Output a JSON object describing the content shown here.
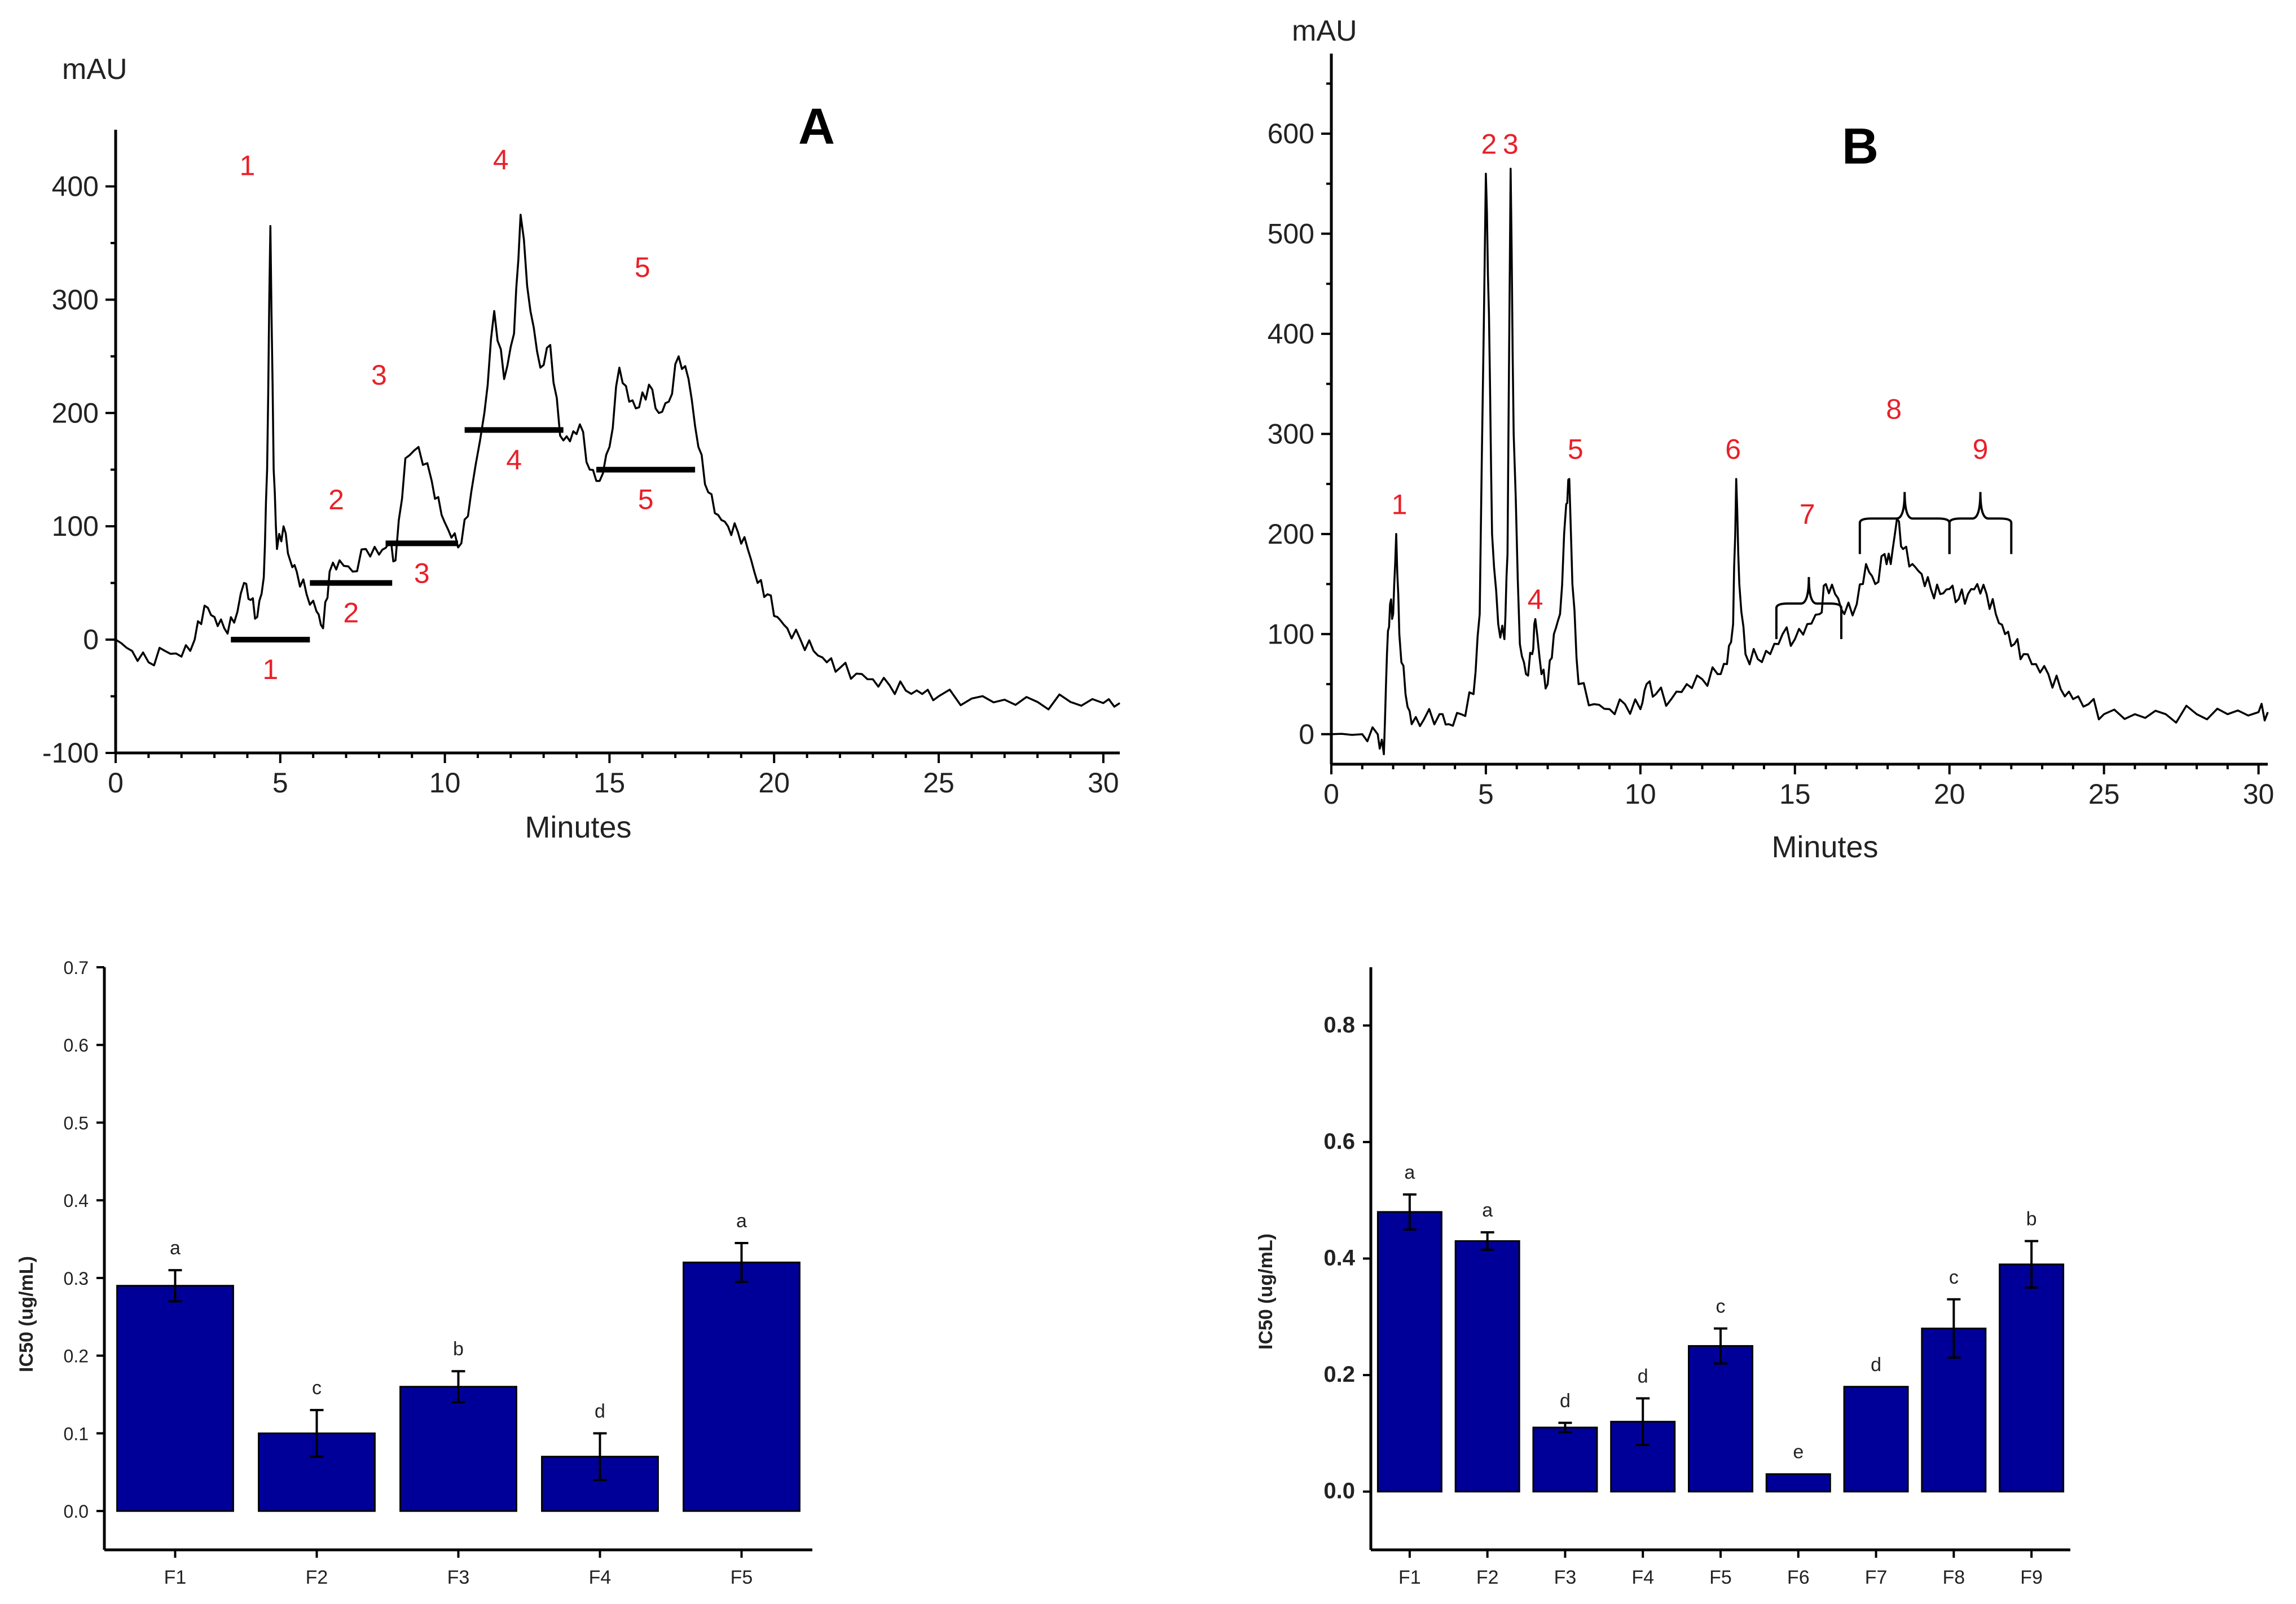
{
  "chart_data": [
    {
      "type": "line",
      "panel_label": "A",
      "title": "",
      "xlabel": "Minutes",
      "ylabel": "mAU",
      "xlim": [
        0,
        30.5
      ],
      "ylim": [
        -100,
        450
      ],
      "xticks": [
        0,
        5,
        10,
        15,
        20,
        25,
        30
      ],
      "yticks": [
        -100,
        0,
        100,
        200,
        300,
        400
      ],
      "trace": [
        [
          0,
          0
        ],
        [
          0.5,
          -10
        ],
        [
          1,
          -20
        ],
        [
          1.5,
          -10
        ],
        [
          2,
          -15
        ],
        [
          2.4,
          0
        ],
        [
          2.7,
          30
        ],
        [
          3,
          20
        ],
        [
          3.3,
          10
        ],
        [
          3.6,
          15
        ],
        [
          3.9,
          50
        ],
        [
          4.1,
          35
        ],
        [
          4.3,
          20
        ],
        [
          4.5,
          55
        ],
        [
          4.6,
          150
        ],
        [
          4.7,
          365
        ],
        [
          4.8,
          150
        ],
        [
          4.9,
          80
        ],
        [
          5.1,
          100
        ],
        [
          5.3,
          70
        ],
        [
          5.5,
          60
        ],
        [
          5.8,
          40
        ],
        [
          6.1,
          25
        ],
        [
          6.3,
          10
        ],
        [
          6.5,
          60
        ],
        [
          6.8,
          70
        ],
        [
          7.2,
          60
        ],
        [
          7.6,
          80
        ],
        [
          8,
          75
        ],
        [
          8.3,
          85
        ],
        [
          8.5,
          70
        ],
        [
          8.8,
          160
        ],
        [
          9.2,
          170
        ],
        [
          9.6,
          140
        ],
        [
          9.9,
          110
        ],
        [
          10.2,
          90
        ],
        [
          10.5,
          85
        ],
        [
          10.8,
          130
        ],
        [
          11.2,
          200
        ],
        [
          11.5,
          290
        ],
        [
          11.8,
          230
        ],
        [
          12.1,
          270
        ],
        [
          12.3,
          375
        ],
        [
          12.6,
          290
        ],
        [
          12.9,
          240
        ],
        [
          13.2,
          260
        ],
        [
          13.5,
          180
        ],
        [
          13.8,
          175
        ],
        [
          14.1,
          190
        ],
        [
          14.4,
          150
        ],
        [
          14.7,
          140
        ],
        [
          15,
          170
        ],
        [
          15.3,
          240
        ],
        [
          15.6,
          210
        ],
        [
          15.9,
          205
        ],
        [
          16.2,
          225
        ],
        [
          16.5,
          200
        ],
        [
          16.8,
          210
        ],
        [
          17.1,
          250
        ],
        [
          17.4,
          230
        ],
        [
          17.7,
          170
        ],
        [
          18,
          130
        ],
        [
          18.3,
          110
        ],
        [
          18.6,
          100
        ],
        [
          18.9,
          95
        ],
        [
          19.2,
          80
        ],
        [
          19.5,
          50
        ],
        [
          19.8,
          40
        ],
        [
          20.1,
          20
        ],
        [
          20.4,
          10
        ],
        [
          20.8,
          0
        ],
        [
          21.2,
          -10
        ],
        [
          21.6,
          -20
        ],
        [
          22,
          -25
        ],
        [
          22.5,
          -30
        ],
        [
          23,
          -35
        ],
        [
          23.5,
          -40
        ],
        [
          24,
          -45
        ],
        [
          24.5,
          -48
        ],
        [
          25,
          -50
        ],
        [
          26,
          -52
        ],
        [
          27,
          -53
        ],
        [
          28,
          -55
        ],
        [
          29,
          -55
        ],
        [
          30,
          -56
        ],
        [
          30.5,
          -56
        ]
      ],
      "fractions": [
        {
          "label": "1",
          "range": [
            3.5,
            5.9
          ],
          "level": 0
        },
        {
          "label": "2",
          "range": [
            5.9,
            8.4
          ],
          "level": 50
        },
        {
          "label": "3",
          "range": [
            8.2,
            10.4
          ],
          "level": 85
        },
        {
          "label": "4",
          "range": [
            10.6,
            13.6
          ],
          "level": 185
        },
        {
          "label": "5",
          "range": [
            14.6,
            17.6
          ],
          "level": 150
        }
      ],
      "peak_labels": [
        {
          "label": "1",
          "x": 4.0,
          "y": 410
        },
        {
          "label": "2",
          "x": 6.7,
          "y": 115
        },
        {
          "label": "3",
          "x": 8.0,
          "y": 225
        },
        {
          "label": "4",
          "x": 11.7,
          "y": 415
        },
        {
          "label": "5",
          "x": 16.0,
          "y": 320
        }
      ]
    },
    {
      "type": "line",
      "panel_label": "B",
      "title": "",
      "xlabel": "Minutes",
      "ylabel": "mAU",
      "xlim": [
        0,
        30.3
      ],
      "ylim": [
        -30,
        680
      ],
      "xticks": [
        0,
        5,
        10,
        15,
        20,
        25,
        30
      ],
      "yticks": [
        0,
        100,
        200,
        300,
        400,
        500,
        600
      ],
      "trace": [
        [
          0,
          0
        ],
        [
          1,
          0
        ],
        [
          1.5,
          0
        ],
        [
          1.7,
          -20
        ],
        [
          1.8,
          80
        ],
        [
          1.9,
          130
        ],
        [
          2,
          120
        ],
        [
          2.1,
          200
        ],
        [
          2.2,
          100
        ],
        [
          2.4,
          40
        ],
        [
          2.6,
          10
        ],
        [
          3,
          15
        ],
        [
          3.5,
          20
        ],
        [
          3.8,
          10
        ],
        [
          4.2,
          20
        ],
        [
          4.6,
          40
        ],
        [
          4.8,
          120
        ],
        [
          5,
          560
        ],
        [
          5.1,
          420
        ],
        [
          5.2,
          200
        ],
        [
          5.4,
          110
        ],
        [
          5.6,
          95
        ],
        [
          5.7,
          180
        ],
        [
          5.8,
          565
        ],
        [
          5.9,
          300
        ],
        [
          6.1,
          90
        ],
        [
          6.3,
          60
        ],
        [
          6.5,
          80
        ],
        [
          6.6,
          115
        ],
        [
          6.8,
          60
        ],
        [
          7,
          50
        ],
        [
          7.2,
          100
        ],
        [
          7.4,
          120
        ],
        [
          7.6,
          230
        ],
        [
          7.7,
          255
        ],
        [
          7.8,
          150
        ],
        [
          8,
          50
        ],
        [
          8.5,
          30
        ],
        [
          9,
          25
        ],
        [
          9.5,
          30
        ],
        [
          10,
          25
        ],
        [
          10.2,
          50
        ],
        [
          10.5,
          40
        ],
        [
          11,
          35
        ],
        [
          11.5,
          50
        ],
        [
          12,
          55
        ],
        [
          12.5,
          60
        ],
        [
          12.8,
          70
        ],
        [
          13,
          110
        ],
        [
          13.1,
          255
        ],
        [
          13.2,
          150
        ],
        [
          13.4,
          80
        ],
        [
          13.8,
          75
        ],
        [
          14.2,
          80
        ],
        [
          14.6,
          100
        ],
        [
          15,
          95
        ],
        [
          15.4,
          110
        ],
        [
          15.8,
          120
        ],
        [
          16,
          150
        ],
        [
          16.3,
          140
        ],
        [
          16.6,
          120
        ],
        [
          17,
          130
        ],
        [
          17.3,
          170
        ],
        [
          17.6,
          150
        ],
        [
          17.9,
          180
        ],
        [
          18.1,
          170
        ],
        [
          18.3,
          215
        ],
        [
          18.5,
          185
        ],
        [
          18.8,
          170
        ],
        [
          19.1,
          160
        ],
        [
          19.4,
          145
        ],
        [
          19.7,
          140
        ],
        [
          20,
          145
        ],
        [
          20.3,
          135
        ],
        [
          20.6,
          140
        ],
        [
          20.9,
          150
        ],
        [
          21.2,
          140
        ],
        [
          21.5,
          120
        ],
        [
          21.8,
          100
        ],
        [
          22.1,
          90
        ],
        [
          22.4,
          80
        ],
        [
          22.8,
          70
        ],
        [
          23.2,
          60
        ],
        [
          23.6,
          45
        ],
        [
          24,
          35
        ],
        [
          24.5,
          30
        ],
        [
          25,
          20
        ],
        [
          26,
          20
        ],
        [
          27,
          20
        ],
        [
          28,
          20
        ],
        [
          29,
          20
        ],
        [
          30,
          22
        ],
        [
          30.3,
          22
        ]
      ],
      "peak_labels": [
        {
          "label": "1",
          "x": 2.2,
          "y": 220
        },
        {
          "label": "2",
          "x": 5.1,
          "y": 580
        },
        {
          "label": "3",
          "x": 5.8,
          "y": 580
        },
        {
          "label": "4",
          "x": 6.6,
          "y": 125
        },
        {
          "label": "5",
          "x": 7.9,
          "y": 275
        },
        {
          "label": "6",
          "x": 13.0,
          "y": 275
        },
        {
          "label": "7",
          "x": 15.4,
          "y": 210
        },
        {
          "label": "8",
          "x": 18.2,
          "y": 315
        },
        {
          "label": "9",
          "x": 21.0,
          "y": 275
        }
      ],
      "braces": [
        [
          14.4,
          16.5
        ],
        [
          17.1,
          20.0
        ],
        [
          20.0,
          22.0
        ]
      ]
    },
    {
      "type": "bar",
      "title": "",
      "xlabel": "",
      "ylabel": "IC50 (ug/mL)",
      "ylim": [
        -0.05,
        0.7
      ],
      "yticks": [
        0.0,
        0.1,
        0.2,
        0.3,
        0.4,
        0.5,
        0.6,
        0.7
      ],
      "tick_labels": [
        "0.0",
        "0.1",
        "0.2",
        "0.3",
        "0.4",
        "0.5",
        "0.6",
        "0.7"
      ],
      "categories": [
        "F1",
        "F2",
        "F3",
        "F4",
        "F5"
      ],
      "values": [
        0.29,
        0.1,
        0.16,
        0.07,
        0.32
      ],
      "errors": [
        0.02,
        0.03,
        0.02,
        0.03,
        0.025
      ],
      "significance": [
        "a",
        "c",
        "b",
        "d",
        "a"
      ]
    },
    {
      "type": "bar",
      "title": "",
      "xlabel": "",
      "ylabel": "IC50 (ug/mL)",
      "ylim": [
        -0.1,
        0.9
      ],
      "yticks": [
        0.0,
        0.2,
        0.4,
        0.6,
        0.8
      ],
      "tick_labels": [
        "0.0",
        "0.2",
        "0.4",
        "0.6",
        "0.8"
      ],
      "categories": [
        "F1",
        "F2",
        "F3",
        "F4",
        "F5",
        "F6",
        "F7",
        "F8",
        "F9"
      ],
      "values": [
        0.48,
        0.43,
        0.11,
        0.12,
        0.25,
        0.03,
        0.18,
        0.28,
        0.39
      ],
      "errors": [
        0.03,
        0.015,
        0.008,
        0.04,
        0.03,
        0.0,
        0.0,
        0.05,
        0.04
      ],
      "significance": [
        "a",
        "a",
        "d",
        "d",
        "c",
        "e",
        "d",
        "c",
        "b"
      ]
    }
  ]
}
